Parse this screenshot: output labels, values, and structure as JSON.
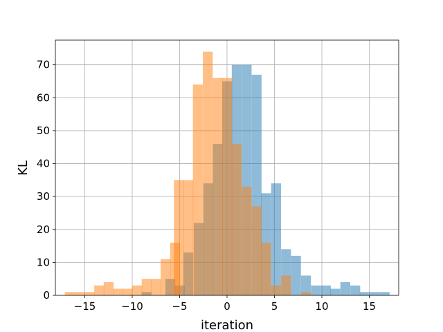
{
  "chart_data": {
    "type": "bar",
    "subtype": "histogram-overlay",
    "title": "",
    "xlabel": "iteration",
    "ylabel": "KL",
    "xlim": [
      -18.1,
      18.1
    ],
    "ylim": [
      0,
      77.5
    ],
    "xticks": [
      -15,
      -10,
      -5,
      0,
      5,
      10,
      15
    ],
    "xtick_labels": [
      "−15",
      "−10",
      "−5",
      "0",
      "5",
      "10",
      "15"
    ],
    "yticks": [
      0,
      10,
      20,
      30,
      40,
      50,
      60,
      70
    ],
    "ytick_labels": [
      "0",
      "10",
      "20",
      "30",
      "40",
      "50",
      "60",
      "70"
    ],
    "grid": true,
    "bin_width": 1.04,
    "series": [
      {
        "color": "#1f77b4",
        "alpha": 0.5,
        "bins": [
          {
            "x0": -9.0,
            "count": 1
          },
          {
            "x0": -6.5,
            "count": 5
          },
          {
            "x0": -5.5,
            "count": 3
          },
          {
            "x0": -4.6,
            "count": 13
          },
          {
            "x0": -3.5,
            "count": 22
          },
          {
            "x0": -2.5,
            "count": 34
          },
          {
            "x0": -1.5,
            "count": 46
          },
          {
            "x0": -0.5,
            "count": 65
          },
          {
            "x0": 0.5,
            "count": 70
          },
          {
            "x0": 1.55,
            "count": 70
          },
          {
            "x0": 2.6,
            "count": 67
          },
          {
            "x0": 3.6,
            "count": 31
          },
          {
            "x0": 4.65,
            "count": 34
          },
          {
            "x0": 5.7,
            "count": 14
          },
          {
            "x0": 6.75,
            "count": 12
          },
          {
            "x0": 7.8,
            "count": 6
          },
          {
            "x0": 8.85,
            "count": 3
          },
          {
            "x0": 9.9,
            "count": 3
          },
          {
            "x0": 10.9,
            "count": 2
          },
          {
            "x0": 11.95,
            "count": 4
          },
          {
            "x0": 13.0,
            "count": 3
          },
          {
            "x0": 14.0,
            "count": 1
          },
          {
            "x0": 15.05,
            "count": 1
          },
          {
            "x0": 16.1,
            "count": 1
          }
        ]
      },
      {
        "color": "#ff7f0e",
        "alpha": 0.5,
        "bins": [
          {
            "x0": -17.1,
            "count": 1
          },
          {
            "x0": -16.05,
            "count": 1
          },
          {
            "x0": -15.0,
            "count": 1
          },
          {
            "x0": -14.0,
            "count": 3
          },
          {
            "x0": -13.0,
            "count": 4
          },
          {
            "x0": -12.0,
            "count": 2
          },
          {
            "x0": -11.0,
            "count": 2
          },
          {
            "x0": -10.0,
            "count": 3
          },
          {
            "x0": -9.0,
            "count": 5
          },
          {
            "x0": -8.0,
            "count": 5
          },
          {
            "x0": -7.0,
            "count": 11
          },
          {
            "x0": -6.0,
            "count": 16
          },
          {
            "x0": -5.6,
            "count": 35
          },
          {
            "x0": -4.6,
            "count": 35
          },
          {
            "x0": -3.6,
            "count": 64
          },
          {
            "x0": -2.55,
            "count": 74
          },
          {
            "x0": -1.5,
            "count": 66
          },
          {
            "x0": -0.5,
            "count": 66
          },
          {
            "x0": 0.5,
            "count": 46
          },
          {
            "x0": 1.55,
            "count": 33
          },
          {
            "x0": 2.6,
            "count": 27
          },
          {
            "x0": 3.6,
            "count": 16
          },
          {
            "x0": 4.65,
            "count": 3
          },
          {
            "x0": 5.7,
            "count": 6
          },
          {
            "x0": 7.8,
            "count": 1
          }
        ]
      }
    ]
  }
}
